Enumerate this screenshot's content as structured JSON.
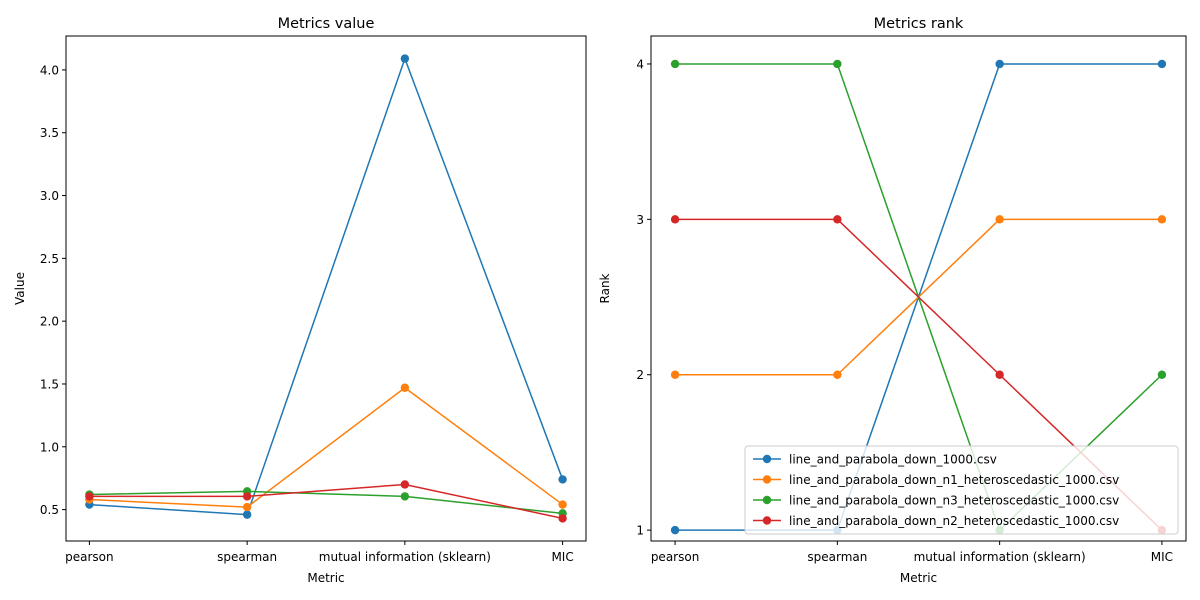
{
  "chart_data": [
    {
      "type": "line",
      "title": "Metrics value",
      "xlabel": "Metric",
      "ylabel": "Value",
      "categories": [
        "pearson",
        "spearman",
        "mutual information (sklearn)",
        "MIC"
      ],
      "ylim": [
        0.25,
        4.27
      ],
      "yticks": [
        0.5,
        1.0,
        1.5,
        2.0,
        2.5,
        3.0,
        3.5,
        4.0
      ],
      "yticklabels": [
        "0.5",
        "1.0",
        "1.5",
        "2.0",
        "2.5",
        "3.0",
        "3.5",
        "4.0"
      ],
      "grid": false,
      "series": [
        {
          "name": "line_and_parabola_down_1000.csv",
          "color": "#1f77b4",
          "values": [
            0.54,
            0.46,
            4.09,
            0.74
          ]
        },
        {
          "name": "line_and_parabola_down_n1_heteroscedastic_1000.csv",
          "color": "#ff7f0e",
          "values": [
            0.58,
            0.52,
            1.47,
            0.54
          ]
        },
        {
          "name": "line_and_parabola_down_n3_heteroscedastic_1000.csv",
          "color": "#2ca02c",
          "values": [
            0.62,
            0.645,
            0.605,
            0.47
          ]
        },
        {
          "name": "line_and_parabola_down_n2_heteroscedastic_1000.csv",
          "color": "#d62728",
          "values": [
            0.605,
            0.605,
            0.7,
            0.43
          ]
        }
      ]
    },
    {
      "type": "line",
      "title": "Metrics rank",
      "xlabel": "Metric",
      "ylabel": "Rank",
      "categories": [
        "pearson",
        "spearman",
        "mutual information (sklearn)",
        "MIC"
      ],
      "ylim": [
        0.93,
        4.18
      ],
      "yticks": [
        1,
        2,
        3,
        4
      ],
      "yticklabels": [
        "1",
        "2",
        "3",
        "4"
      ],
      "grid": false,
      "legend": "lower right",
      "series": [
        {
          "name": "line_and_parabola_down_1000.csv",
          "color": "#1f77b4",
          "values": [
            1,
            1,
            4,
            4
          ]
        },
        {
          "name": "line_and_parabola_down_n1_heteroscedastic_1000.csv",
          "color": "#ff7f0e",
          "values": [
            2,
            2,
            3,
            3
          ]
        },
        {
          "name": "line_and_parabola_down_n3_heteroscedastic_1000.csv",
          "color": "#2ca02c",
          "values": [
            4,
            4,
            1,
            2
          ]
        },
        {
          "name": "line_and_parabola_down_n2_heteroscedastic_1000.csv",
          "color": "#d62728",
          "values": [
            3,
            3,
            2,
            1
          ]
        }
      ]
    }
  ]
}
